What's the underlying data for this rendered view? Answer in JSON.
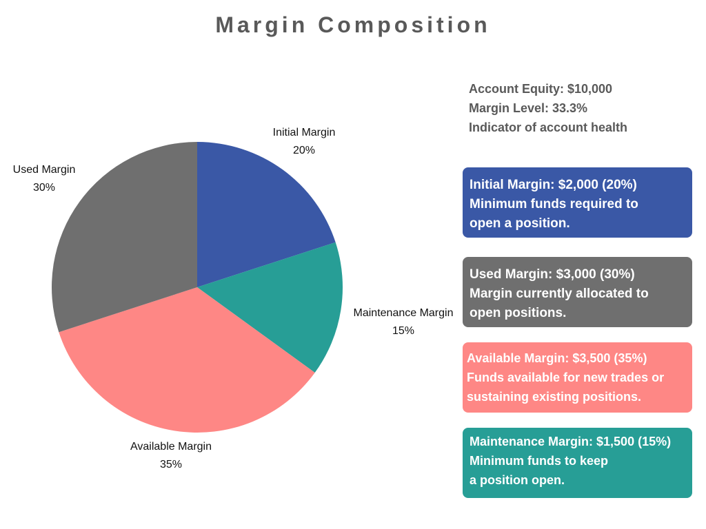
{
  "title": "Margin Composition",
  "chart_data": {
    "type": "pie",
    "slices": [
      {
        "key": "initial",
        "label": "Initial Margin",
        "value": 20,
        "percent_label": "20%",
        "color": "#3a58a6"
      },
      {
        "key": "maintenance",
        "label": "Maintenance Margin",
        "value": 15,
        "percent_label": "15%",
        "color": "#279e96"
      },
      {
        "key": "available",
        "label": "Available Margin",
        "value": 35,
        "percent_label": "35%",
        "color": "#fe8785"
      },
      {
        "key": "used",
        "label": "Used Margin",
        "value": 30,
        "percent_label": "30%",
        "color": "#6f6f6f"
      }
    ]
  },
  "info": {
    "equity": "Account Equity: $10,000",
    "level": "Margin Level: 33.3%",
    "note": "Indicator of account health"
  },
  "cards": {
    "initial": {
      "color": "#3a58a6",
      "lines": [
        "Initial Margin: $2,000 (20%)",
        "Minimum funds required to",
        "open a position."
      ]
    },
    "used": {
      "color": "#6f6f6f",
      "lines": [
        "Used Margin: $3,000 (30%)",
        "Margin currently allocated to",
        "open positions."
      ]
    },
    "available": {
      "color": "#fe8785",
      "lines": [
        "Available Margin: $3,500 (35%)",
        "Funds available for new trades or",
        "sustaining existing positions."
      ]
    },
    "maintenance": {
      "color": "#279e96",
      "lines": [
        "Maintenance Margin: $1,500 (15%)",
        "Minimum funds to keep",
        "a position open."
      ]
    }
  }
}
